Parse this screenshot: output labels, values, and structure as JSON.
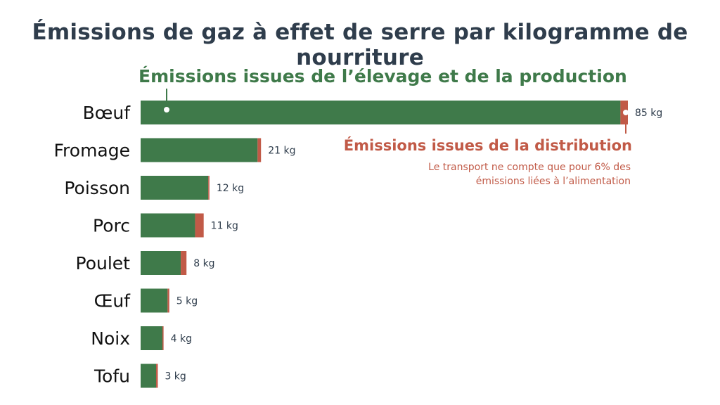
{
  "chart_data": {
    "type": "bar",
    "orientation": "horizontal",
    "stacked": true,
    "title": "Émissions de gaz à effet de serre par kilogramme de nourriture",
    "categories": [
      "Bœuf",
      "Fromage",
      "Poisson",
      "Porc",
      "Poulet",
      "Œuf",
      "Noix",
      "Tofu"
    ],
    "totals": [
      85,
      21,
      12,
      11,
      8,
      5,
      4,
      3
    ],
    "value_labels": [
      "85 kg",
      "21 kg",
      "12 kg",
      "11 kg",
      "8 kg",
      "5 kg",
      "4 kg",
      "3 kg"
    ],
    "series": [
      {
        "name": "Émissions issues de l’élevage et de la production",
        "color": "#3f7a4a",
        "values": [
          83.7,
          20.4,
          11.8,
          9.5,
          7.0,
          4.7,
          3.8,
          2.7
        ]
      },
      {
        "name": "Émissions issues de la distribution",
        "color": "#c15a47",
        "values": [
          1.3,
          0.6,
          0.2,
          1.5,
          1.0,
          0.3,
          0.2,
          0.3
        ]
      }
    ],
    "xlim": [
      0,
      85
    ],
    "note": "Le transport ne compte que pour 6% des émissions liées à l’alimentation",
    "grid": false
  }
}
